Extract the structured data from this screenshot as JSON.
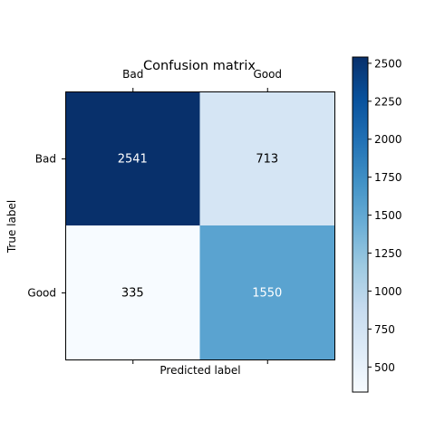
{
  "chart_data": {
    "type": "heatmap",
    "title": "Confusion matrix",
    "xlabel": "Predicted label",
    "ylabel": "True label",
    "x_categories": [
      "Bad",
      "Good"
    ],
    "y_categories": [
      "Bad",
      "Good"
    ],
    "values": [
      [
        2541,
        713
      ],
      [
        335,
        1550
      ]
    ],
    "colormap": "Blues",
    "color_range": [
      335,
      2541
    ],
    "colorbar_ticks": [
      "500",
      "750",
      "1000",
      "1250",
      "1500",
      "1750",
      "2000",
      "2250",
      "2500"
    ],
    "colorbar_tick_values": [
      500,
      750,
      1000,
      1250,
      1500,
      1750,
      2000,
      2250,
      2500
    ],
    "cell_text_colors": {
      "dark": "#ffffff",
      "light": "#000000"
    },
    "grid": false
  }
}
